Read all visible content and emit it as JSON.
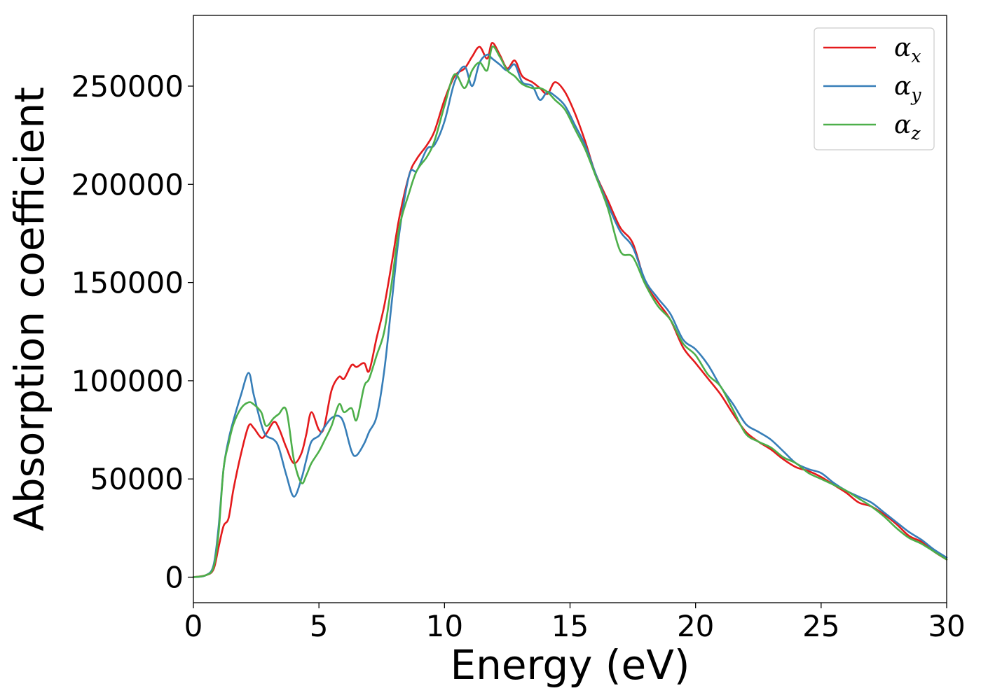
{
  "chart_data": {
    "type": "line",
    "title": "",
    "xlabel": "Energy (eV)",
    "ylabel": "Absorption coefficient",
    "xlim": [
      0,
      30
    ],
    "ylim": [
      -13000,
      286000
    ],
    "grid": false,
    "legend_position": "top-right",
    "x_ticks": [
      0,
      5,
      10,
      15,
      20,
      25,
      30
    ],
    "x_tick_labels": [
      "0",
      "5",
      "10",
      "15",
      "20",
      "25",
      "30"
    ],
    "y_ticks": [
      0,
      50000,
      100000,
      150000,
      200000,
      250000
    ],
    "y_tick_labels": [
      "0",
      "50000",
      "100000",
      "150000",
      "200000",
      "250000"
    ],
    "series": [
      {
        "name": "α",
        "subscript": "x",
        "color": "#e41a1c",
        "x": [
          0,
          0.5,
          0.8,
          1.0,
          1.2,
          1.4,
          1.6,
          1.9,
          2.2,
          2.4,
          2.7,
          2.9,
          3.2,
          3.4,
          3.7,
          4.0,
          4.3,
          4.5,
          4.7,
          5.0,
          5.2,
          5.5,
          5.8,
          6.0,
          6.3,
          6.5,
          6.8,
          7.0,
          7.3,
          7.6,
          7.9,
          8.2,
          8.6,
          8.9,
          9.3,
          9.6,
          10.0,
          10.4,
          10.8,
          11.1,
          11.4,
          11.7,
          11.9,
          12.2,
          12.5,
          12.8,
          13.1,
          13.5,
          13.8,
          14.1,
          14.4,
          14.8,
          15.2,
          15.6,
          16.0,
          16.5,
          17.0,
          17.5,
          18.0,
          18.5,
          19.0,
          19.5,
          20.0,
          20.5,
          21.0,
          21.5,
          22.0,
          22.5,
          23.0,
          23.5,
          24.0,
          24.5,
          25.0,
          25.5,
          26.0,
          26.5,
          27.0,
          27.5,
          28.0,
          28.5,
          29.0,
          29.5,
          30.0
        ],
        "values": [
          0,
          1000,
          4000,
          15000,
          26000,
          30000,
          45000,
          63000,
          77000,
          76000,
          71000,
          73000,
          79000,
          76000,
          66000,
          58000,
          63000,
          73000,
          84000,
          75000,
          76000,
          95000,
          102000,
          101000,
          108000,
          107000,
          109000,
          105000,
          122000,
          138000,
          160000,
          183000,
          205000,
          213000,
          220000,
          227000,
          243000,
          255000,
          259000,
          265000,
          270000,
          264000,
          272000,
          266000,
          259000,
          263000,
          255000,
          252000,
          249000,
          246000,
          252000,
          247000,
          236000,
          222000,
          206000,
          192000,
          178000,
          170000,
          150000,
          140000,
          131000,
          117000,
          109000,
          101000,
          93000,
          83000,
          74000,
          69000,
          65000,
          60000,
          56000,
          54000,
          51000,
          47000,
          43000,
          38000,
          36000,
          32000,
          27000,
          21000,
          18000,
          13000,
          9000
        ]
      },
      {
        "name": "α",
        "subscript": "y",
        "color": "#377eb8",
        "x": [
          0,
          0.5,
          0.8,
          1.0,
          1.2,
          1.4,
          1.6,
          1.9,
          2.2,
          2.4,
          2.7,
          2.9,
          3.2,
          3.4,
          3.7,
          4.0,
          4.3,
          4.5,
          4.7,
          5.0,
          5.2,
          5.5,
          5.8,
          6.0,
          6.3,
          6.5,
          6.8,
          7.0,
          7.3,
          7.6,
          7.9,
          8.2,
          8.6,
          8.9,
          9.3,
          9.6,
          10.0,
          10.4,
          10.8,
          11.1,
          11.4,
          11.7,
          11.9,
          12.2,
          12.5,
          12.8,
          13.1,
          13.5,
          13.8,
          14.1,
          14.4,
          14.8,
          15.2,
          15.6,
          16.0,
          16.5,
          17.0,
          17.5,
          18.0,
          18.5,
          19.0,
          19.5,
          20.0,
          20.5,
          21.0,
          21.5,
          22.0,
          22.5,
          23.0,
          23.5,
          24.0,
          24.5,
          25.0,
          25.5,
          26.0,
          26.5,
          27.0,
          27.5,
          28.0,
          28.5,
          29.0,
          29.5,
          30.0
        ],
        "values": [
          0,
          1000,
          6000,
          25000,
          55000,
          70000,
          80000,
          93000,
          104000,
          93000,
          78000,
          72000,
          70000,
          66000,
          52000,
          41000,
          50000,
          60000,
          69000,
          72000,
          76000,
          81000,
          82000,
          78000,
          64000,
          62000,
          68000,
          74000,
          82000,
          105000,
          140000,
          175000,
          205000,
          207000,
          218000,
          220000,
          232000,
          252000,
          260000,
          250000,
          262000,
          266000,
          264000,
          261000,
          258000,
          261000,
          252000,
          250000,
          243000,
          247000,
          245000,
          240000,
          230000,
          220000,
          206000,
          190000,
          176000,
          168000,
          151000,
          142000,
          134000,
          121000,
          116000,
          108000,
          97000,
          88000,
          78000,
          74000,
          70000,
          64000,
          58000,
          55000,
          53000,
          48000,
          44000,
          41000,
          38000,
          33000,
          28000,
          23000,
          19000,
          14000,
          10000
        ]
      },
      {
        "name": "α",
        "subscript": "z",
        "color": "#4daf4a",
        "x": [
          0,
          0.5,
          0.8,
          1.0,
          1.2,
          1.4,
          1.6,
          1.9,
          2.2,
          2.4,
          2.7,
          2.9,
          3.2,
          3.4,
          3.7,
          4.0,
          4.3,
          4.5,
          4.7,
          5.0,
          5.2,
          5.5,
          5.8,
          6.0,
          6.3,
          6.5,
          6.8,
          7.0,
          7.3,
          7.6,
          7.9,
          8.2,
          8.6,
          8.9,
          9.3,
          9.6,
          10.0,
          10.4,
          10.8,
          11.1,
          11.4,
          11.7,
          11.9,
          12.2,
          12.5,
          12.8,
          13.1,
          13.5,
          13.8,
          14.1,
          14.4,
          14.8,
          15.2,
          15.6,
          16.0,
          16.5,
          17.0,
          17.5,
          18.0,
          18.5,
          19.0,
          19.5,
          20.0,
          20.5,
          21.0,
          21.5,
          22.0,
          22.5,
          23.0,
          23.5,
          24.0,
          24.5,
          25.0,
          25.5,
          26.0,
          26.5,
          27.0,
          27.5,
          28.0,
          28.5,
          29.0,
          29.5,
          30.0
        ],
        "values": [
          0,
          1000,
          5000,
          22000,
          55000,
          68000,
          78000,
          86000,
          89000,
          88000,
          84000,
          77000,
          81000,
          83000,
          85000,
          60000,
          48000,
          52000,
          58000,
          64000,
          69000,
          77000,
          88000,
          84000,
          86000,
          80000,
          97000,
          101000,
          113000,
          125000,
          150000,
          178000,
          196000,
          207000,
          214000,
          222000,
          240000,
          256000,
          249000,
          258000,
          262000,
          258000,
          270000,
          265000,
          258000,
          255000,
          251000,
          249000,
          249000,
          247000,
          243000,
          238000,
          228000,
          218000,
          205000,
          188000,
          166000,
          163000,
          149000,
          138000,
          131000,
          119000,
          113000,
          103000,
          97000,
          85000,
          73000,
          69000,
          66000,
          61000,
          58000,
          53000,
          50000,
          47000,
          44000,
          40000,
          36000,
          31000,
          25000,
          20000,
          17000,
          13000,
          9000
        ]
      }
    ]
  }
}
